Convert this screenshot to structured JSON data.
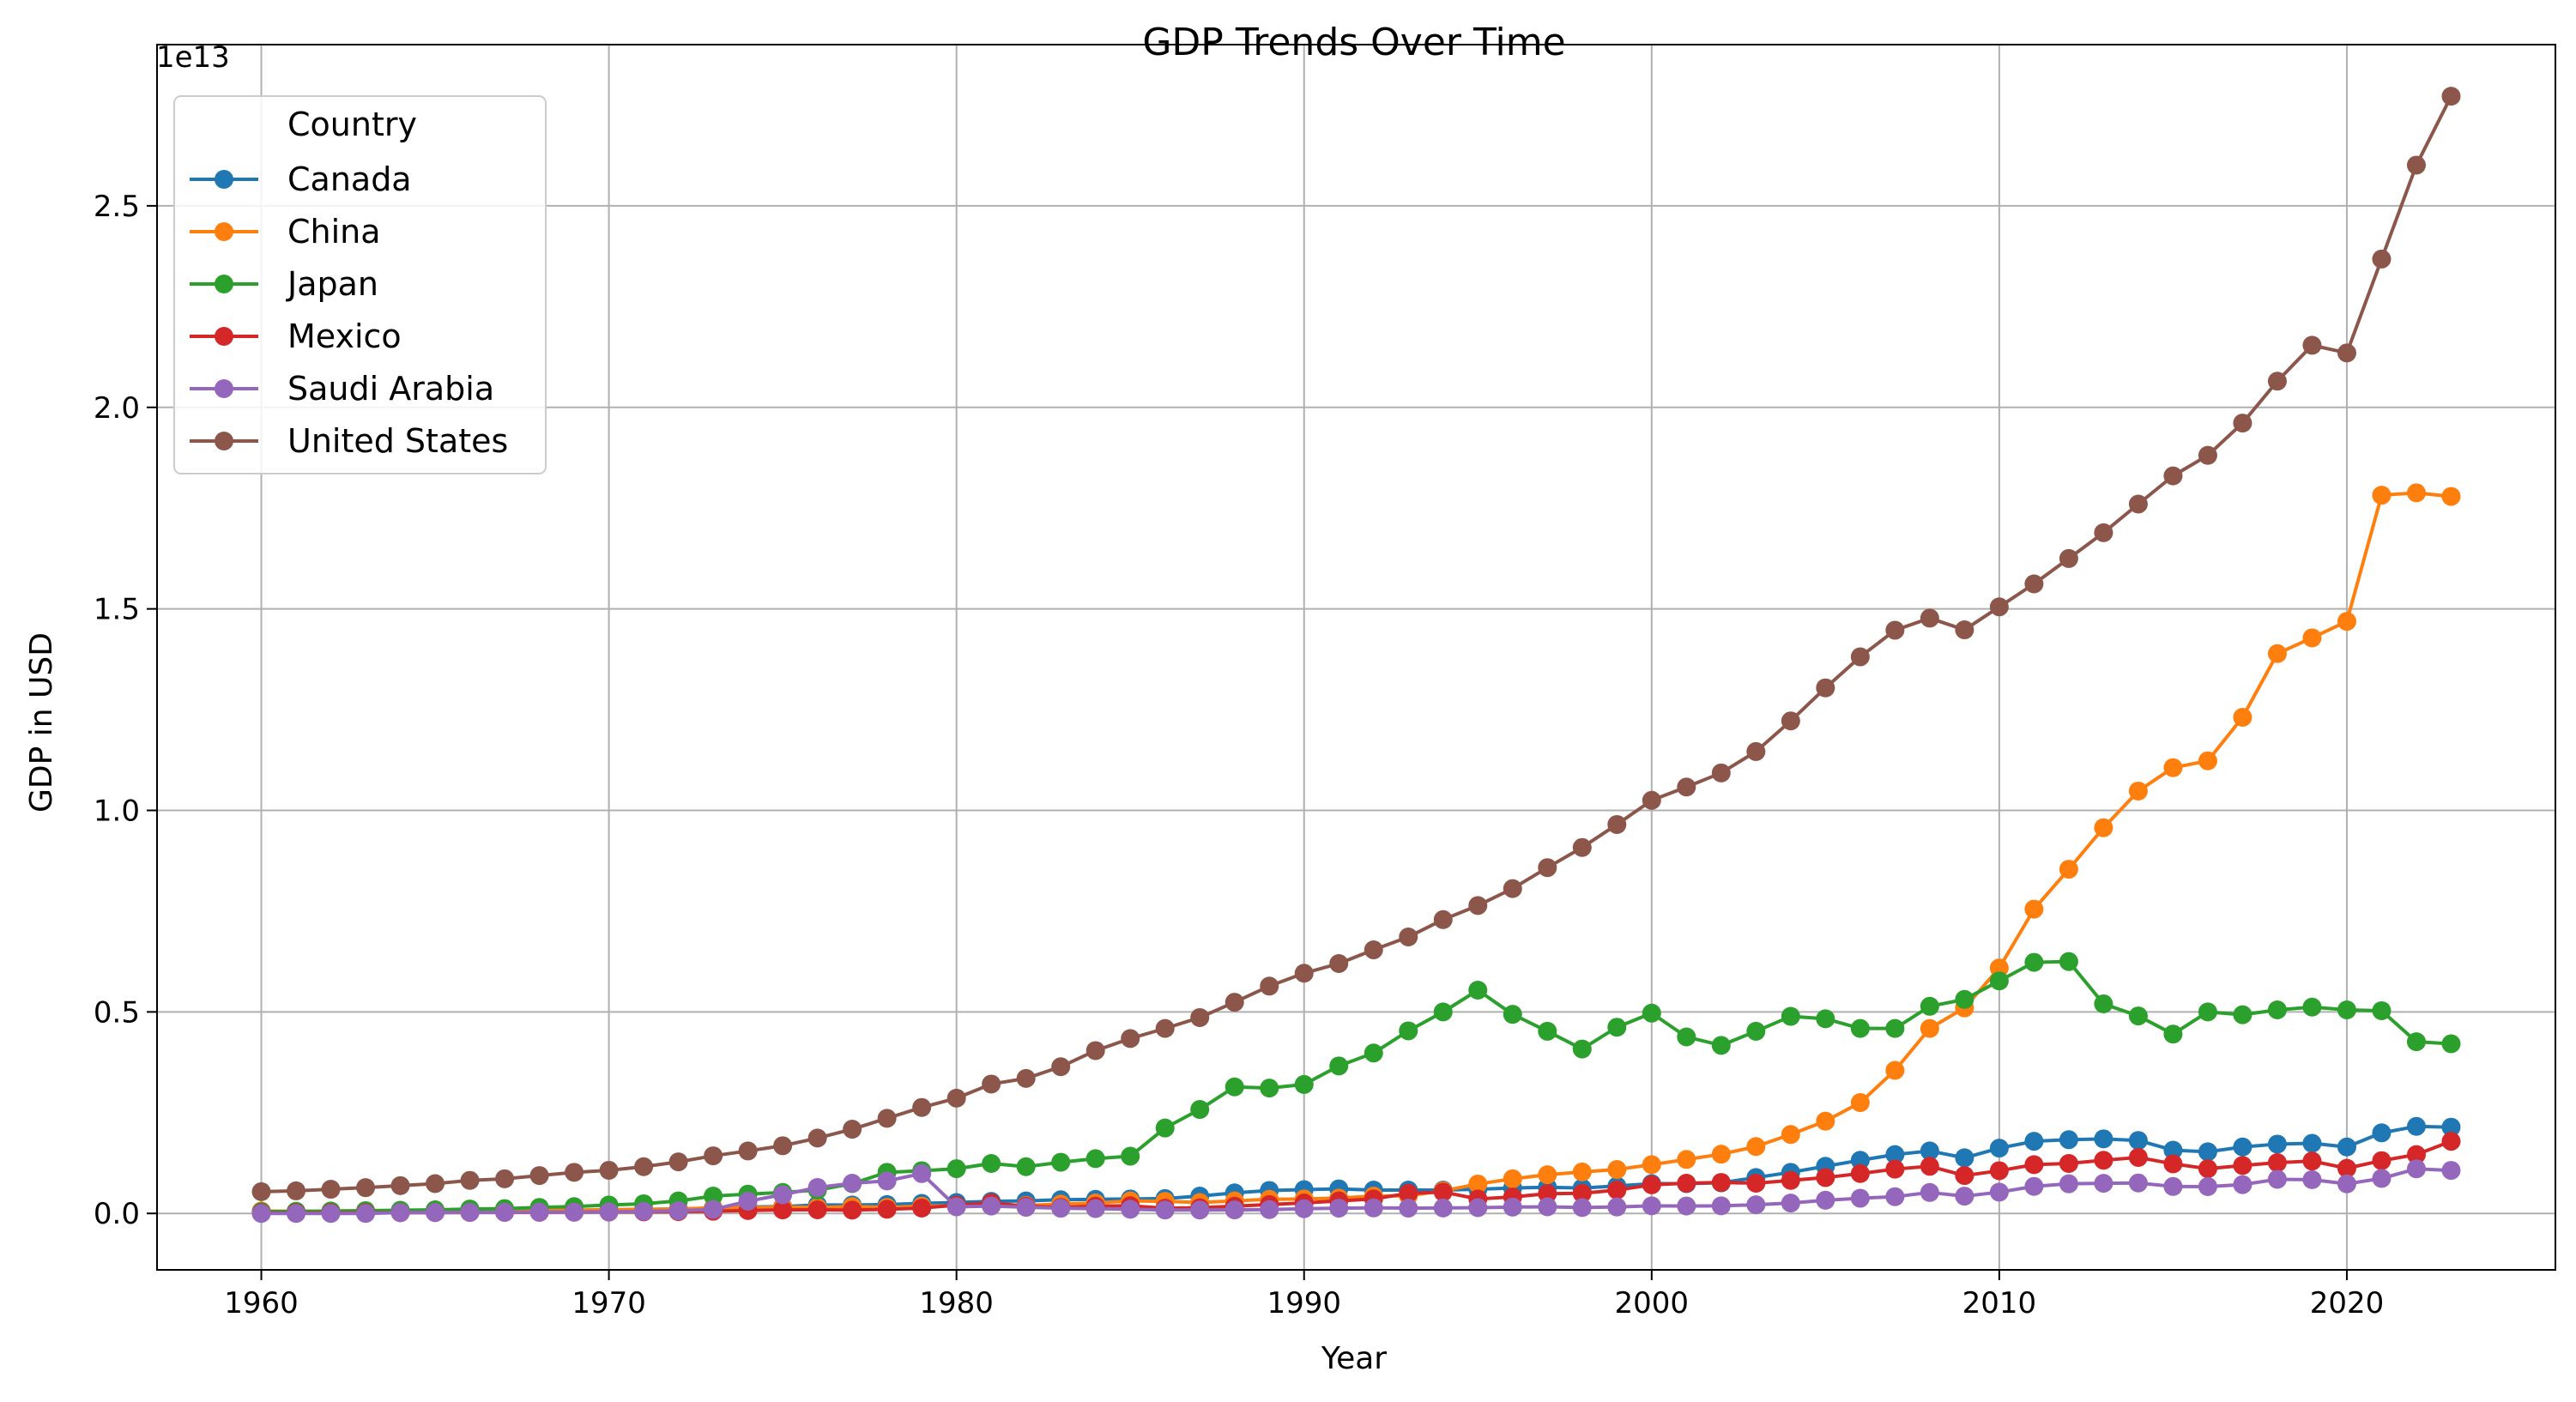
{
  "chart_data": {
    "type": "line",
    "title": "GDP Trends Over Time",
    "xlabel": "Year",
    "ylabel": "GDP in USD",
    "y_offset_label": "1e13",
    "y_scale": 10000000000000.0,
    "xlim": [
      1957,
      2026
    ],
    "ylim": [
      -0.14,
      2.9
    ],
    "x_ticks": [
      1960,
      1970,
      1980,
      1990,
      2000,
      2010,
      2020
    ],
    "y_ticks": [
      0.0,
      0.5,
      1.0,
      1.5,
      2.0,
      2.5
    ],
    "y_tick_labels": [
      "0.0",
      "0.5",
      "1.0",
      "1.5",
      "2.0",
      "2.5"
    ],
    "grid": true,
    "legend": {
      "title": "Country",
      "placement": "top-left"
    },
    "x": [
      1960,
      1961,
      1962,
      1963,
      1964,
      1965,
      1966,
      1967,
      1968,
      1969,
      1970,
      1971,
      1972,
      1973,
      1974,
      1975,
      1976,
      1977,
      1978,
      1979,
      1980,
      1981,
      1982,
      1983,
      1984,
      1985,
      1986,
      1987,
      1988,
      1989,
      1990,
      1991,
      1992,
      1993,
      1994,
      1995,
      1996,
      1997,
      1998,
      1999,
      2000,
      2001,
      2002,
      2003,
      2004,
      2005,
      2006,
      2007,
      2008,
      2009,
      2010,
      2011,
      2012,
      2013,
      2014,
      2015,
      2016,
      2017,
      2018,
      2019,
      2020,
      2021,
      2022,
      2023
    ],
    "series": [
      {
        "name": "Canada",
        "color": "#1f77b4",
        "values": [
          0.004,
          0.004,
          0.004,
          0.005,
          0.005,
          0.006,
          0.006,
          0.007,
          0.007,
          0.008,
          0.009,
          0.01,
          0.011,
          0.013,
          0.016,
          0.017,
          0.021,
          0.021,
          0.022,
          0.025,
          0.027,
          0.03,
          0.031,
          0.034,
          0.035,
          0.036,
          0.037,
          0.043,
          0.051,
          0.057,
          0.059,
          0.061,
          0.058,
          0.058,
          0.058,
          0.06,
          0.063,
          0.065,
          0.063,
          0.068,
          0.074,
          0.074,
          0.076,
          0.089,
          0.102,
          0.117,
          0.132,
          0.146,
          0.155,
          0.138,
          0.162,
          0.179,
          0.183,
          0.185,
          0.181,
          0.157,
          0.153,
          0.165,
          0.172,
          0.174,
          0.165,
          0.2,
          0.216,
          0.214
        ]
      },
      {
        "name": "China",
        "color": "#ff7f0e",
        "values": [
          0.006,
          0.005,
          0.005,
          0.005,
          0.006,
          0.007,
          0.008,
          0.007,
          0.007,
          0.008,
          0.009,
          0.01,
          0.011,
          0.014,
          0.014,
          0.016,
          0.015,
          0.017,
          0.015,
          0.018,
          0.019,
          0.019,
          0.02,
          0.023,
          0.026,
          0.031,
          0.03,
          0.027,
          0.031,
          0.035,
          0.036,
          0.038,
          0.043,
          0.044,
          0.056,
          0.073,
          0.086,
          0.096,
          0.103,
          0.109,
          0.121,
          0.134,
          0.147,
          0.166,
          0.196,
          0.229,
          0.275,
          0.355,
          0.459,
          0.51,
          0.609,
          0.755,
          0.854,
          0.957,
          1.048,
          1.106,
          1.123,
          1.231,
          1.389,
          1.428,
          1.469,
          1.782,
          1.788,
          1.779
        ]
      },
      {
        "name": "Japan",
        "color": "#2ca02c",
        "values": [
          0.0044,
          0.0054,
          0.006,
          0.007,
          0.008,
          0.009,
          0.011,
          0.012,
          0.015,
          0.017,
          0.021,
          0.024,
          0.031,
          0.043,
          0.048,
          0.052,
          0.058,
          0.074,
          0.102,
          0.106,
          0.111,
          0.124,
          0.116,
          0.127,
          0.136,
          0.142,
          0.212,
          0.258,
          0.314,
          0.311,
          0.32,
          0.366,
          0.398,
          0.453,
          0.5,
          0.554,
          0.494,
          0.452,
          0.408,
          0.462,
          0.497,
          0.438,
          0.417,
          0.452,
          0.489,
          0.483,
          0.459,
          0.459,
          0.514,
          0.531,
          0.577,
          0.623,
          0.625,
          0.52,
          0.49,
          0.445,
          0.5,
          0.493,
          0.505,
          0.512,
          0.505,
          0.503,
          0.426,
          0.421
        ]
      },
      {
        "name": "Mexico",
        "color": "#d62728",
        "values": [
          0.0013,
          0.0014,
          0.0015,
          0.0016,
          0.0019,
          0.0021,
          0.0024,
          0.0026,
          0.0028,
          0.0031,
          0.0035,
          0.0039,
          0.0045,
          0.0055,
          0.0072,
          0.0088,
          0.009,
          0.0082,
          0.0103,
          0.0134,
          0.0205,
          0.026,
          0.018,
          0.015,
          0.018,
          0.019,
          0.013,
          0.014,
          0.018,
          0.022,
          0.026,
          0.031,
          0.036,
          0.05,
          0.053,
          0.036,
          0.041,
          0.049,
          0.05,
          0.058,
          0.071,
          0.075,
          0.077,
          0.075,
          0.082,
          0.089,
          0.099,
          0.11,
          0.117,
          0.094,
          0.106,
          0.121,
          0.124,
          0.132,
          0.139,
          0.123,
          0.111,
          0.119,
          0.126,
          0.13,
          0.112,
          0.131,
          0.146,
          0.179
        ]
      },
      {
        "name": "Saudi Arabia",
        "color": "#9467bd",
        "values": [
          0.0,
          0.0,
          0.0,
          0.0,
          0.0022,
          0.0024,
          0.0026,
          0.0028,
          0.0031,
          0.0032,
          0.0039,
          0.0051,
          0.0066,
          0.0098,
          0.0305,
          0.0464,
          0.0645,
          0.0749,
          0.0807,
          0.0989,
          0.0164,
          0.0184,
          0.0153,
          0.0129,
          0.0119,
          0.0104,
          0.0086,
          0.0085,
          0.0088,
          0.0095,
          0.0117,
          0.0131,
          0.0137,
          0.0132,
          0.0135,
          0.0143,
          0.0158,
          0.0165,
          0.0146,
          0.0161,
          0.0189,
          0.0184,
          0.0189,
          0.0215,
          0.0258,
          0.0328,
          0.0377,
          0.0416,
          0.052,
          0.0429,
          0.0528,
          0.0671,
          0.0736,
          0.0747,
          0.0756,
          0.0669,
          0.0666,
          0.0715,
          0.0847,
          0.0838,
          0.0735,
          0.0869,
          0.1108,
          0.1068
        ]
      },
      {
        "name": "United States",
        "color": "#8c564b",
        "values": [
          0.054,
          0.056,
          0.06,
          0.064,
          0.069,
          0.074,
          0.082,
          0.086,
          0.094,
          0.102,
          0.107,
          0.116,
          0.128,
          0.143,
          0.155,
          0.168,
          0.187,
          0.209,
          0.236,
          0.263,
          0.286,
          0.321,
          0.335,
          0.364,
          0.404,
          0.434,
          0.459,
          0.486,
          0.524,
          0.564,
          0.596,
          0.62,
          0.654,
          0.686,
          0.729,
          0.764,
          0.806,
          0.858,
          0.908,
          0.965,
          1.025,
          1.058,
          1.093,
          1.146,
          1.222,
          1.304,
          1.381,
          1.447,
          1.477,
          1.448,
          1.505,
          1.562,
          1.625,
          1.689,
          1.76,
          1.83,
          1.881,
          1.961,
          2.065,
          2.154,
          2.135,
          2.368,
          2.601,
          2.772
        ]
      }
    ]
  }
}
